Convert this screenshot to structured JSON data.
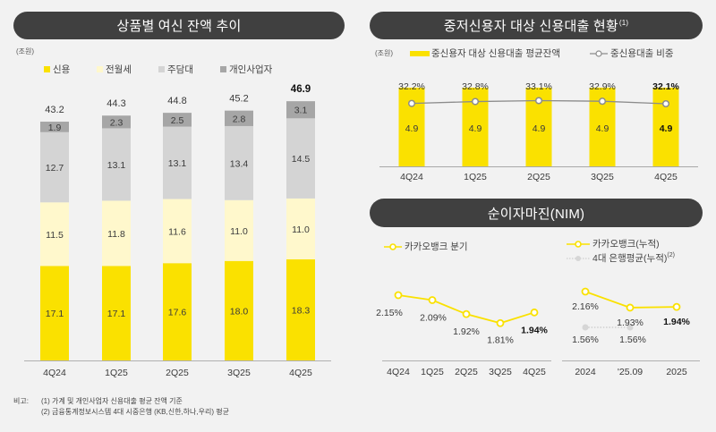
{
  "left_panel": {
    "title": "상품별 여신 잔액 추이",
    "unit": "(조원)",
    "legend": [
      {
        "label": "신용",
        "color": "#fae100"
      },
      {
        "label": "전월세",
        "color": "#fff8cc"
      },
      {
        "label": "주담대",
        "color": "#d4d4d4"
      },
      {
        "label": "개인사업자",
        "color": "#a6a6a6"
      }
    ]
  },
  "right_top_panel": {
    "title": "중저신용자 대상 신용대출 현황",
    "title_sup": "(1)",
    "unit": "(조원)",
    "legend_bar": "중신용자 대상 신용대출 평균잔액",
    "legend_line": "중신용대출 비중"
  },
  "nim_panel": {
    "title": "순이자마진(NIM)",
    "legend_quarterly": "카카오뱅크 분기",
    "legend_cumulative": "카카오뱅크(누적)",
    "legend_big4": "4대 은행평균(누적)",
    "legend_big4_sup": "(2)"
  },
  "notes": {
    "label": "비고:",
    "lines": [
      "(1) 가계 및 개인사업자 신용대출 평균 잔액 기준",
      "(2) 금융통계정보시스템 4대 시중은행 (KB,신한,하나,우리) 평균"
    ]
  },
  "chart_data": [
    {
      "type": "bar",
      "stacked": true,
      "title": "상품별 여신 잔액 추이",
      "ylabel": "(조원)",
      "categories": [
        "4Q24",
        "1Q25",
        "2Q25",
        "3Q25",
        "4Q25"
      ],
      "series": [
        {
          "name": "신용",
          "color": "#fae100",
          "values": [
            17.1,
            17.1,
            17.6,
            18.0,
            18.3
          ]
        },
        {
          "name": "전월세",
          "color": "#fff8cc",
          "values": [
            11.5,
            11.8,
            11.6,
            11.0,
            11.0
          ]
        },
        {
          "name": "주담대",
          "color": "#d4d4d4",
          "values": [
            12.7,
            13.1,
            13.1,
            13.4,
            14.5
          ]
        },
        {
          "name": "개인사업자",
          "color": "#a6a6a6",
          "values": [
            1.9,
            2.3,
            2.5,
            2.8,
            3.1
          ]
        }
      ],
      "totals": [
        "43.2",
        "44.3",
        "44.8",
        "45.2",
        "46.9"
      ],
      "value_labels": [
        [
          "17.1",
          "17.1",
          "17.6",
          "18.0",
          "18.3"
        ],
        [
          "11.5",
          "11.8",
          "11.6",
          "11.0",
          "11.0"
        ],
        [
          "12.7",
          "13.1",
          "13.1",
          "13.4",
          "14.5"
        ],
        [
          "1.9",
          "2.3",
          "2.5",
          "2.8",
          "3.1"
        ]
      ],
      "highlight_last": true,
      "grid": false
    },
    {
      "type": "bar",
      "title": "중저신용자 대상 신용대출 현황",
      "ylabel": "(조원)",
      "categories": [
        "4Q24",
        "1Q25",
        "2Q25",
        "3Q25",
        "4Q25"
      ],
      "bar_series": {
        "name": "중신용자 대상 신용대출 평균잔액",
        "color": "#fae100",
        "values": [
          4.9,
          4.9,
          4.9,
          4.9,
          4.9
        ],
        "labels": [
          "4.9",
          "4.9",
          "4.9",
          "4.9",
          "4.9"
        ]
      },
      "line_series": {
        "name": "중신용대출 비중",
        "color": "#8c8c8c",
        "values": [
          32.2,
          32.8,
          33.1,
          32.9,
          32.1
        ],
        "labels": [
          "32.2%",
          "32.8%",
          "33.1%",
          "32.9%",
          "32.1%"
        ]
      },
      "highlight_last": true,
      "grid": false
    },
    {
      "type": "line",
      "title": "순이자마진(NIM) - 분기",
      "categories": [
        "4Q24",
        "1Q25",
        "2Q25",
        "3Q25",
        "4Q25"
      ],
      "series": [
        {
          "name": "카카오뱅크 분기",
          "color": "#fae100",
          "values": [
            2.15,
            2.09,
            1.92,
            1.81,
            1.94
          ],
          "labels": [
            "2.15%",
            "2.09%",
            "1.92%",
            "1.81%",
            "1.94%"
          ]
        }
      ],
      "highlight_last": true,
      "grid": false
    },
    {
      "type": "line",
      "title": "순이자마진(NIM) - 누적",
      "categories": [
        "2024",
        "'25.09",
        "2025"
      ],
      "series": [
        {
          "name": "카카오뱅크(누적)",
          "color": "#fae100",
          "values": [
            2.16,
            1.93,
            1.94
          ],
          "labels": [
            "2.16%",
            "1.93%",
            "1.94%"
          ]
        },
        {
          "name": "4대 은행평균(누적)",
          "color": "#d0d0d0",
          "values": [
            1.56,
            1.56
          ],
          "labels": [
            "1.56%",
            "1.56%"
          ]
        }
      ],
      "highlight_last": true,
      "grid": false
    }
  ]
}
